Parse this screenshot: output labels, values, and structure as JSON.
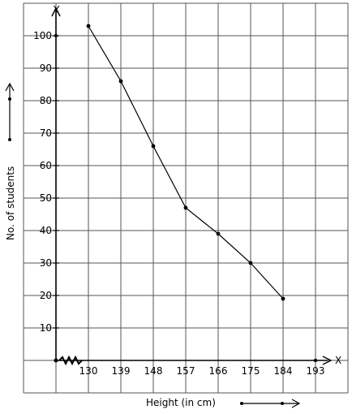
{
  "chart_data": {
    "type": "line",
    "xlabel": "Height (in cm)",
    "ylabel": "No. of students",
    "x_axis_letter": "X",
    "y_axis_letter": "Y",
    "x_ticks": [
      130,
      139,
      148,
      157,
      166,
      175,
      184,
      193
    ],
    "y_ticks": [
      10,
      20,
      30,
      40,
      50,
      60,
      70,
      80,
      90,
      100
    ],
    "xlim": [
      121,
      193
    ],
    "ylim": [
      0,
      100
    ],
    "grid": true,
    "x_axis_break": true,
    "series": [
      {
        "x": [
          130,
          139,
          148,
          157,
          166,
          175,
          184
        ],
        "y": [
          103,
          86,
          66,
          47,
          39,
          30,
          19
        ]
      }
    ],
    "color": "#000000"
  }
}
